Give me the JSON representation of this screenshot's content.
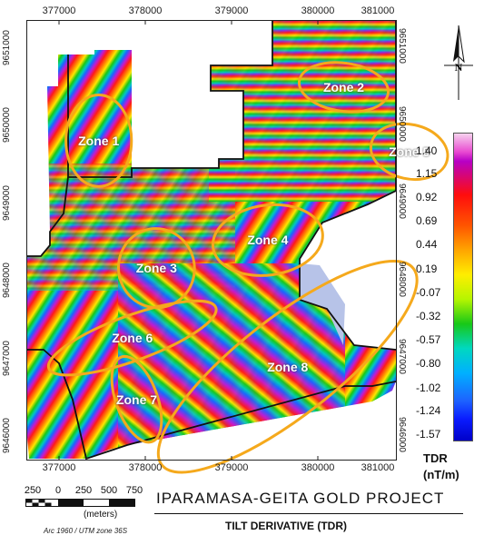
{
  "x_ticks": [
    "377000",
    "378000",
    "379000",
    "380000",
    "381000"
  ],
  "y_ticks": [
    "9651000",
    "9650000",
    "9649000",
    "9648000",
    "9647000",
    "9646000"
  ],
  "zones": [
    {
      "label": "Zone 1",
      "x": 377460,
      "y": 9650030,
      "rx": 380,
      "ry": 590
    },
    {
      "label": "Zone 2",
      "x": 380300,
      "y": 9650720,
      "rx": 520,
      "ry": 310
    },
    {
      "label": "Zone 3",
      "x": 378130,
      "y": 9648390,
      "rx": 440,
      "ry": 510
    },
    {
      "label": "Zone 4",
      "x": 379420,
      "y": 9648750,
      "rx": 640,
      "ry": 450
    },
    {
      "label": "Zone 5",
      "x": 381060,
      "y": 9649890,
      "rx": 450,
      "ry": 350
    },
    {
      "label": "Zone 6",
      "x": 377850,
      "y": 9647490,
      "rx": 1030,
      "ry": 290
    },
    {
      "label": "Zone 7",
      "x": 377900,
      "y": 9646700,
      "rx": 240,
      "ry": 580
    },
    {
      "label": "Zone 8",
      "x": 379650,
      "y": 9647120,
      "rx": 1850,
      "ry": 630
    }
  ],
  "legend": {
    "title": "TDR",
    "unit": "(nT/m)",
    "values": [
      "1.40",
      "1.15",
      "0.92",
      "0.69",
      "0.44",
      "0.19",
      "-0.07",
      "-0.32",
      "-0.57",
      "-0.80",
      "-1.02",
      "-1.24",
      "-1.57"
    ]
  },
  "scale_bar": {
    "labels": [
      "250",
      "0",
      "250",
      "500",
      "750"
    ],
    "unit": "(meters)"
  },
  "projection": "Arc 1960 / UTM zone 36S",
  "title": "IPARAMASA-GEITA GOLD PROJECT",
  "subtitle": "TILT DERIVATIVE (TDR)",
  "colors": {
    "zone_outline": "#f5a91c",
    "boundary": "#111111",
    "pale_zone": "#b7c3e8"
  }
}
